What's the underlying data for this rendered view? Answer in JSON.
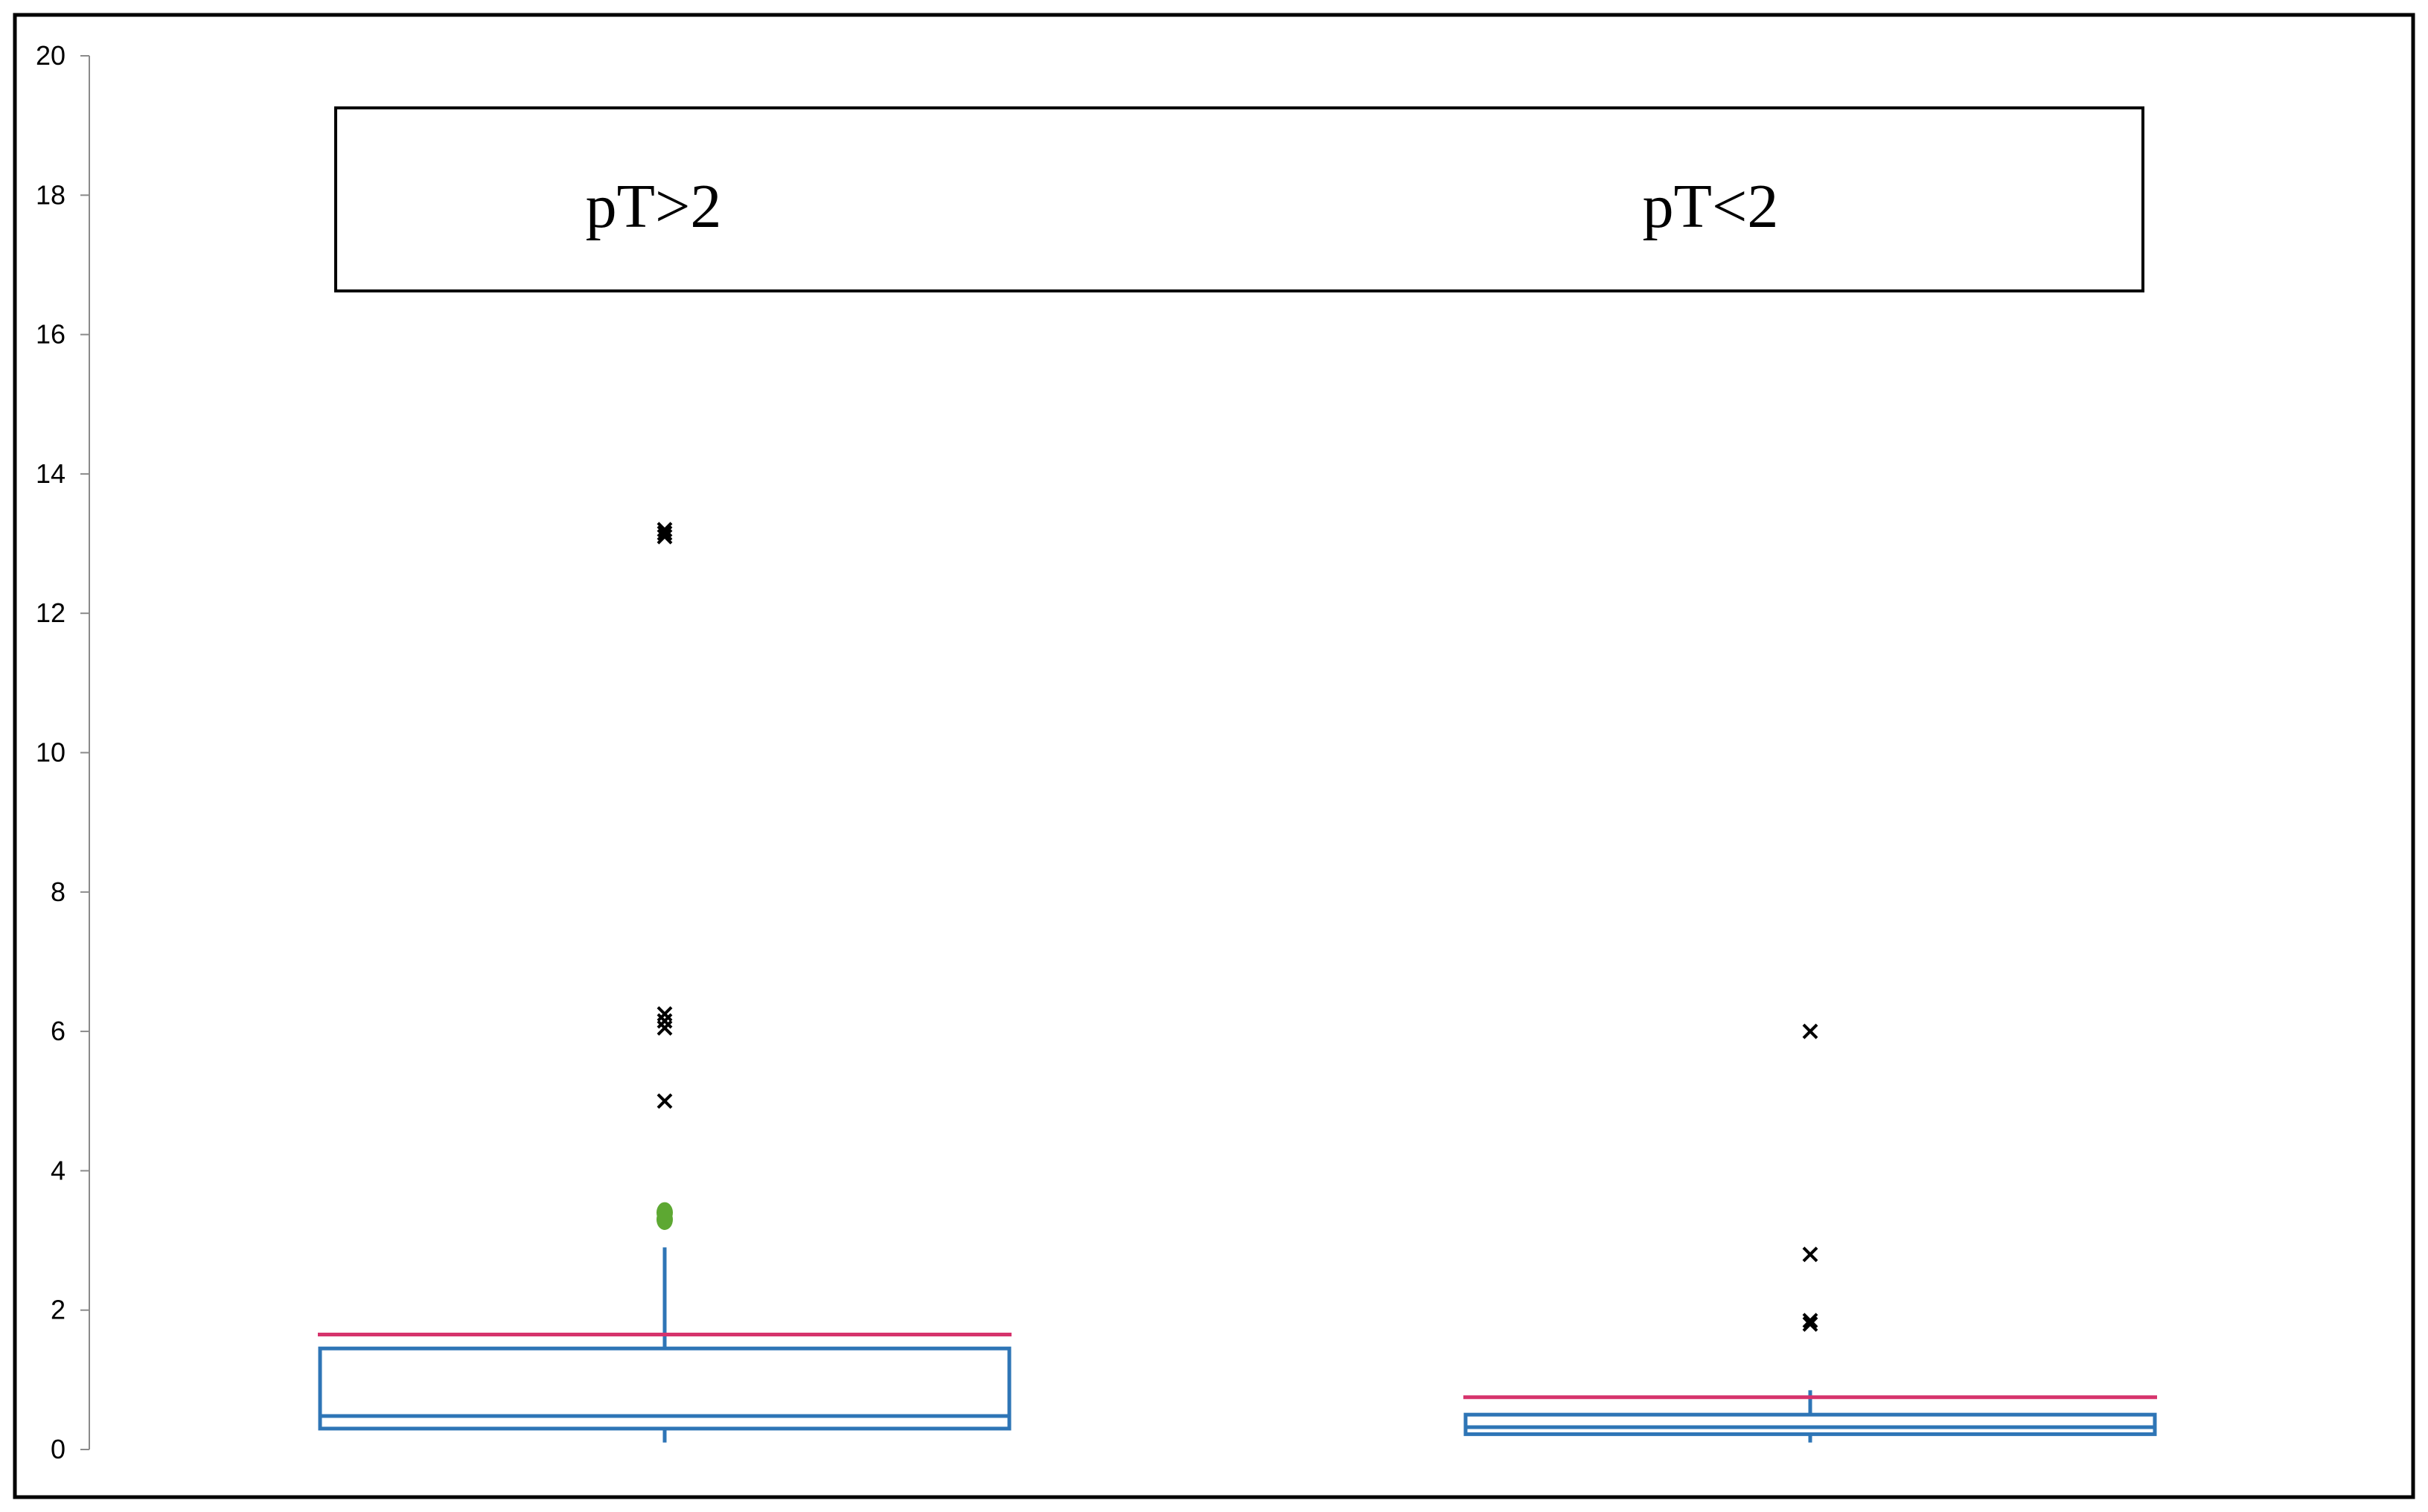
{
  "chart_data": {
    "type": "box",
    "title": "",
    "xlabel": "",
    "ylabel": "",
    "ylim": [
      0,
      20
    ],
    "yticks": [
      0,
      2,
      4,
      6,
      8,
      10,
      12,
      14,
      16,
      18,
      20
    ],
    "ytick_labels": [
      "0",
      "2",
      "4",
      "6",
      "8",
      "10",
      "12",
      "14",
      "16",
      "18",
      "20"
    ],
    "grid": false,
    "legend": "none",
    "group_label_box": true,
    "groups": [
      {
        "label": "pT>2",
        "whisker_low": 0.1,
        "q1": 0.3,
        "median": 0.48,
        "q3": 1.45,
        "whisker_high": 2.9,
        "mean": 1.65,
        "outliers": [
          3.3,
          3.4,
          5.0,
          6.05,
          6.15,
          6.25,
          13.1,
          13.15,
          13.2
        ],
        "outlier_markers": [
          "dot",
          "dot",
          "x",
          "x",
          "x",
          "x",
          "x",
          "x",
          "x"
        ]
      },
      {
        "label": "pT<2",
        "whisker_low": 0.1,
        "q1": 0.22,
        "median": 0.32,
        "q3": 0.5,
        "whisker_high": 0.85,
        "mean": 0.75,
        "outliers": [
          1.8,
          1.85,
          2.8,
          6.0
        ],
        "outlier_markers": [
          "x",
          "x",
          "x",
          "x"
        ]
      }
    ],
    "colors": {
      "box": "#2E75B6",
      "mean_line": "#D6336C",
      "outlier_x": "#000000",
      "outlier_dot": "#5DA832",
      "axis": "#000000",
      "frame": "#000000"
    }
  }
}
